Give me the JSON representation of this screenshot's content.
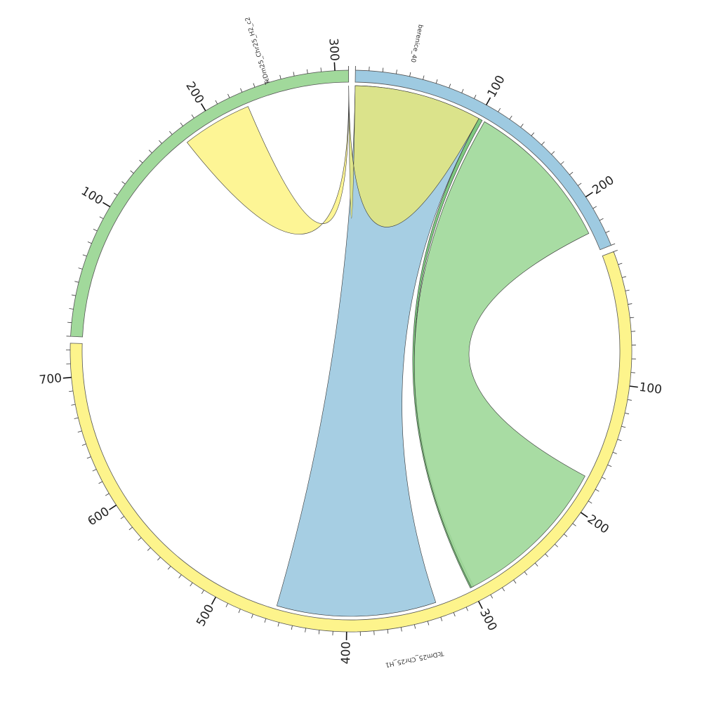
{
  "diagram": {
    "type": "chord",
    "segments": [
      {
        "name": "berenice_40",
        "length": 240,
        "color": "#9ecae1"
      },
      {
        "name": "TcDm25_Chr25_H1",
        "length": 725,
        "color": "#fdf48c"
      },
      {
        "name": "TcDm25_Chr25_H2_c2",
        "length": 310,
        "color": "#a1d99b"
      }
    ],
    "tick_step_minor": 10,
    "tick_step_major": 100,
    "links": [
      {
        "from": "berenice_40",
        "from_range": [
          0,
          100
        ],
        "to": "TcDm25_Chr25_H1",
        "to_range": [
          330,
          455
        ],
        "color": "#9ecae1"
      },
      {
        "from": "berenice_40",
        "from_range": [
          100,
          103
        ],
        "to": "TcDm25_Chr25_H1",
        "to_range": [
          298,
          301
        ],
        "color": "#74c476"
      },
      {
        "from": "berenice_40",
        "from_range": [
          105,
          225
        ],
        "to": "TcDm25_Chr25_H1",
        "to_range": [
          175,
          300
        ],
        "color": "#a1d99b"
      },
      {
        "from": "TcDm25_Chr25_H2_c2",
        "from_range": [
          175,
          230
        ],
        "to": "TcDm25_Chr25_H2_c2",
        "to_range": [
          310,
          310
        ],
        "color": "#fdf48c"
      },
      {
        "from": "berenice_40",
        "from_range": [
          0,
          100
        ],
        "to": "TcDm25_Chr25_H2_c2",
        "to_range": [
          310,
          310
        ],
        "color": "#dfe583"
      }
    ]
  }
}
